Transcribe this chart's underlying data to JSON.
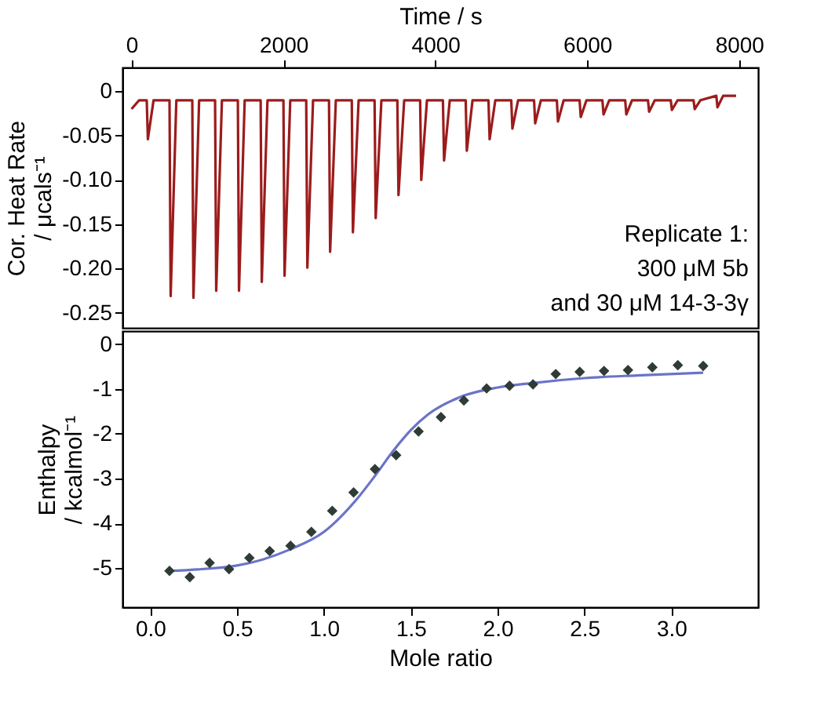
{
  "chart_data": [
    {
      "type": "line",
      "xlabel": "Time / s",
      "ylabel": "Cor. Heat Rate / μcals⁻¹",
      "x": [
        0,
        100,
        200,
        215,
        290,
        500,
        515,
        590,
        800,
        815,
        890,
        1100,
        1115,
        1190,
        1400,
        1415,
        1490,
        1700,
        1715,
        1790,
        2000,
        2015,
        2090,
        2300,
        2315,
        2390,
        2600,
        2615,
        2690,
        2900,
        2915,
        2990,
        3200,
        3215,
        3290,
        3500,
        3515,
        3590,
        3800,
        3815,
        3890,
        4100,
        4115,
        4190,
        4400,
        4415,
        4490,
        4700,
        4715,
        4790,
        5000,
        5015,
        5090,
        5300,
        5315,
        5390,
        5600,
        5615,
        5690,
        5900,
        5915,
        5990,
        6200,
        6215,
        6290,
        6500,
        6515,
        6590,
        6800,
        6815,
        6890,
        7100,
        7115,
        7190,
        7400,
        7415,
        7490,
        7700,
        7715,
        7790,
        7960
      ],
      "series": [
        {
          "color": "#9b1c1c",
          "values": [
            -0.02,
            -0.01,
            -0.01,
            -0.054,
            -0.01,
            -0.01,
            -0.231,
            -0.01,
            -0.01,
            -0.233,
            -0.01,
            -0.01,
            -0.225,
            -0.01,
            -0.01,
            -0.225,
            -0.01,
            -0.01,
            -0.215,
            -0.01,
            -0.01,
            -0.208,
            -0.01,
            -0.01,
            -0.199,
            -0.01,
            -0.01,
            -0.181,
            -0.01,
            -0.01,
            -0.159,
            -0.01,
            -0.01,
            -0.143,
            -0.01,
            -0.01,
            -0.117,
            -0.01,
            -0.01,
            -0.1,
            -0.01,
            -0.01,
            -0.078,
            -0.01,
            -0.01,
            -0.067,
            -0.01,
            -0.01,
            -0.054,
            -0.01,
            -0.01,
            -0.042,
            -0.01,
            -0.01,
            -0.036,
            -0.01,
            -0.01,
            -0.034,
            -0.01,
            -0.01,
            -0.029,
            -0.01,
            -0.01,
            -0.026,
            -0.01,
            -0.01,
            -0.026,
            -0.01,
            -0.01,
            -0.023,
            -0.01,
            -0.01,
            -0.021,
            -0.01,
            -0.01,
            -0.02,
            -0.01,
            -0.005,
            -0.018,
            -0.005,
            -0.005
          ]
        }
      ],
      "xlim": [
        -120,
        8250
      ],
      "xticks": [
        0,
        {
          "value": 2000,
          "label": "2000"
        },
        {
          "value": 4000,
          "label": "4000"
        },
        {
          "value": 6000,
          "label": "6000"
        },
        {
          "value": 8000,
          "label": "8000"
        }
      ],
      "ylim": [
        -0.267,
        0.027
      ],
      "yticks": [
        0,
        {
          "value": -0.05,
          "label": "-0.05"
        },
        {
          "value": -0.1,
          "label": "-0.10"
        },
        {
          "value": -0.15,
          "label": "-0.15"
        },
        {
          "value": -0.2,
          "label": "-0.20"
        },
        {
          "value": -0.25,
          "label": "-0.25"
        }
      ],
      "annotations": [
        "Replicate 1:",
        "300 μM 5b",
        "and 30 μM 14-3-3γ"
      ],
      "grid": false
    },
    {
      "type": "scatter",
      "xlabel": "Mole ratio",
      "ylabel": "Enthalpy / kcalmol⁻¹",
      "x": [
        0.111,
        0.228,
        0.342,
        0.454,
        0.571,
        0.688,
        0.808,
        0.928,
        1.048,
        1.171,
        1.294,
        1.416,
        1.545,
        1.674,
        1.806,
        1.937,
        2.069,
        2.204,
        2.335,
        2.473,
        2.613,
        2.751,
        2.891,
        3.038,
        3.184
      ],
      "series": [
        {
          "color": "#2f3b35",
          "marker": "diamond",
          "values": [
            -5.06,
            -5.2,
            -4.88,
            -5.02,
            -4.77,
            -4.62,
            -4.5,
            -4.19,
            -3.72,
            -3.31,
            -2.79,
            -2.48,
            -1.95,
            -1.63,
            -1.26,
            -0.99,
            -0.93,
            -0.9,
            -0.67,
            -0.62,
            -0.6,
            -0.58,
            -0.52,
            -0.47,
            -0.49
          ]
        },
        {
          "type": "line",
          "marker": "none",
          "color": "#6b74c8",
          "x": [
            0.111,
            0.5,
            0.8,
            1.0,
            1.2,
            1.3,
            1.4,
            1.5,
            1.6,
            1.8,
            2.0,
            2.2,
            2.5,
            2.8,
            3.184
          ],
          "values": [
            -5.06,
            -4.94,
            -4.59,
            -4.19,
            -3.41,
            -2.91,
            -2.38,
            -1.92,
            -1.57,
            -1.16,
            -0.97,
            -0.87,
            -0.76,
            -0.7,
            -0.64
          ]
        }
      ],
      "xlim": [
        -0.16,
        3.5
      ],
      "xticks": [
        {
          "value": 0,
          "label": "0.0"
        },
        {
          "value": 0.5,
          "label": "0.5"
        },
        {
          "value": 1,
          "label": "1.0"
        },
        {
          "value": 1.5,
          "label": "1.5"
        },
        {
          "value": 2,
          "label": "2.0"
        },
        {
          "value": 2.5,
          "label": "2.5"
        },
        {
          "value": 3,
          "label": "3.0"
        }
      ],
      "ylim": [
        -5.87,
        0.29
      ],
      "yticks": [
        0,
        -1,
        -2,
        -3,
        -4,
        -5
      ],
      "grid": false
    }
  ]
}
